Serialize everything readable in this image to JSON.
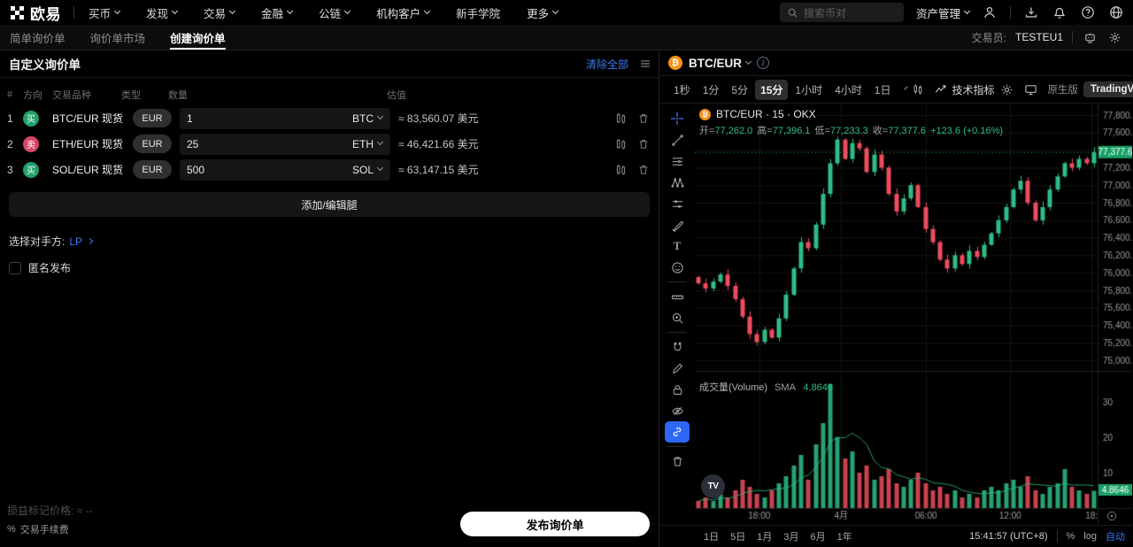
{
  "colors": {
    "accent_blue": "#3179f5",
    "buy_green": "#21a06d",
    "sell_red": "#d64666",
    "up": "#2ebd85",
    "down": "#ec4d5c",
    "tag_green": "#17a065",
    "grid": "#151515",
    "axis_text": "#9b9b9b"
  },
  "top_nav": {
    "logo": "欧易",
    "items": [
      {
        "label": "买币",
        "chevron": true
      },
      {
        "label": "发现",
        "chevron": true
      },
      {
        "label": "交易",
        "chevron": true
      },
      {
        "label": "金融",
        "chevron": true
      },
      {
        "label": "公链",
        "chevron": true
      },
      {
        "label": "机构客户",
        "chevron": true
      },
      {
        "label": "新手学院",
        "chevron": false
      },
      {
        "label": "更多",
        "chevron": true
      }
    ],
    "search_placeholder": "搜索币对",
    "assets_label": "资产管理"
  },
  "sub_nav": {
    "tabs": [
      "简单询价单",
      "询价单市场",
      "创建询价单"
    ],
    "active_index": 2,
    "trader_label": "交易员:",
    "trader_value": "TESTEU1"
  },
  "quote_panel": {
    "title": "自定义询价单",
    "clear_all": "清除全部",
    "headers": [
      "#",
      "方向",
      "交易品种",
      "类型",
      "数量",
      "估值"
    ],
    "legs": [
      {
        "index": "1",
        "side": "买",
        "direction": "buy",
        "pair": "BTC/EUR 现货",
        "type": "EUR",
        "quantity": "1",
        "currency": "BTC",
        "value": "≈ 83,560.07 美元"
      },
      {
        "index": "2",
        "side": "卖",
        "direction": "sell",
        "pair": "ETH/EUR 现货",
        "type": "EUR",
        "quantity": "25",
        "currency": "ETH",
        "value": "≈ 46,421.66 美元"
      },
      {
        "index": "3",
        "side": "买",
        "direction": "buy",
        "pair": "SOL/EUR 现货",
        "type": "EUR",
        "quantity": "500",
        "currency": "SOL",
        "value": "≈ 63,147.15 美元"
      }
    ],
    "add_edit_legs": "添加/编辑腿",
    "counterparty_label": "选择对手方:",
    "counterparty_value": "LP",
    "anonymous_label": "匿名发布",
    "anonymous_checked": false,
    "pnl_mark_label": "损益标记价格:",
    "pnl_mark_value": "≈ --",
    "fee_label": "交易手续费",
    "publish_label": "发布询价单"
  },
  "chart_panel": {
    "symbol": "BTC/EUR",
    "timeframes": [
      "1秒",
      "1分",
      "5分",
      "15分",
      "1小时",
      "4小时",
      "1日"
    ],
    "active_timeframe": "15分",
    "indicators_label": "技术指标",
    "native_label": "原生版",
    "tv_label": "TradingView",
    "legend_title": "BTC/EUR · 15 · OKX",
    "ohlc": [
      {
        "k": "开=",
        "v": "77,262.0"
      },
      {
        "k": "高=",
        "v": "77,396.1"
      },
      {
        "k": "低=",
        "v": "77,233.3"
      },
      {
        "k": "收=",
        "v": "77,377.6"
      }
    ],
    "change": "+123.6 (+0.16%)",
    "volume_label": "成交量(Volume)",
    "sma_label": "SMA",
    "sma_value": "4.8646",
    "tv_watermark": "TV",
    "range_tabs": [
      "1日",
      "5日",
      "1月",
      "3月",
      "6月",
      "1年"
    ],
    "clock": "15:41:57 (UTC+8)",
    "percent_label": "%",
    "log_label": "log",
    "auto_label": "自动",
    "drawing_tools": [
      {
        "name": "crosshair-icon",
        "icon": "crosshair"
      },
      {
        "name": "trend-line-icon",
        "icon": "trendline"
      },
      {
        "name": "fib-lines-icon",
        "icon": "fib"
      },
      {
        "name": "xabcd-pattern-icon",
        "icon": "xabcd"
      },
      {
        "name": "position-tool-icon",
        "icon": "position"
      },
      {
        "name": "brush-icon",
        "icon": "brush"
      },
      {
        "name": "text-tool-icon",
        "icon": "text"
      },
      {
        "name": "emoji-icon",
        "icon": "emoji"
      },
      {
        "divider": true
      },
      {
        "name": "ruler-icon",
        "icon": "ruler"
      },
      {
        "name": "zoom-in-icon",
        "icon": "zoomin"
      },
      {
        "divider": true
      },
      {
        "name": "magnet-icon",
        "icon": "magnet"
      },
      {
        "name": "edit-pencil-icon",
        "icon": "pencil"
      },
      {
        "name": "lock-icon",
        "icon": "lock"
      },
      {
        "name": "hide-drawings-icon",
        "icon": "eyeoff"
      },
      {
        "name": "sync-drawings-icon",
        "icon": "link",
        "active": true
      },
      {
        "divider": true
      },
      {
        "name": "trash-icon",
        "icon": "trash"
      }
    ]
  },
  "chart_data": {
    "type": "candlestick",
    "symbol": "BTC/EUR",
    "interval": "15m",
    "exchange": "OKX",
    "last": {
      "open": 77262.0,
      "high": 77396.1,
      "low": 77233.3,
      "close": 77377.6,
      "change": 123.6,
      "change_pct": 0.16
    },
    "current_price": 77377.6,
    "current_price_label": "77,377.6",
    "current_volume_label": "4.8646",
    "y_axis": {
      "max": 77800,
      "min": 75000,
      "step": 200,
      "hidden_tick": 77400
    },
    "volume_ticks": [
      30,
      20,
      10
    ],
    "x_labels": [
      {
        "t": "18:00",
        "f": 0.16
      },
      {
        "t": "4月",
        "f": 0.363
      },
      {
        "t": "06:00",
        "f": 0.574
      },
      {
        "t": "12:00",
        "f": 0.783
      },
      {
        "t": "18:",
        "f": 0.985
      }
    ],
    "first_open": 75950,
    "closes": [
      75880,
      75820,
      75900,
      75980,
      75850,
      75700,
      75500,
      75300,
      75210,
      75350,
      75260,
      75480,
      75750,
      76050,
      76350,
      76280,
      76550,
      76900,
      77250,
      77520,
      77300,
      77480,
      77420,
      77150,
      77350,
      77200,
      76900,
      76700,
      76850,
      77000,
      76750,
      76500,
      76350,
      76150,
      76050,
      76200,
      76100,
      76250,
      76180,
      76320,
      76450,
      76600,
      76750,
      76950,
      77050,
      76800,
      76600,
      76750,
      76950,
      77100,
      77250,
      77200,
      77300,
      77250,
      77377.6
    ],
    "volumes": [
      2,
      3,
      2,
      4,
      3,
      5,
      8,
      6,
      4,
      3,
      5,
      7,
      9,
      12,
      15,
      8,
      18,
      24,
      35,
      20,
      14,
      16,
      10,
      12,
      8,
      9,
      11,
      7,
      6,
      8,
      10,
      7,
      5,
      6,
      4,
      5,
      3,
      4,
      3,
      5,
      6,
      5,
      7,
      8,
      6,
      9,
      5,
      4,
      6,
      7,
      11,
      6,
      5,
      4,
      4.8646
    ]
  }
}
